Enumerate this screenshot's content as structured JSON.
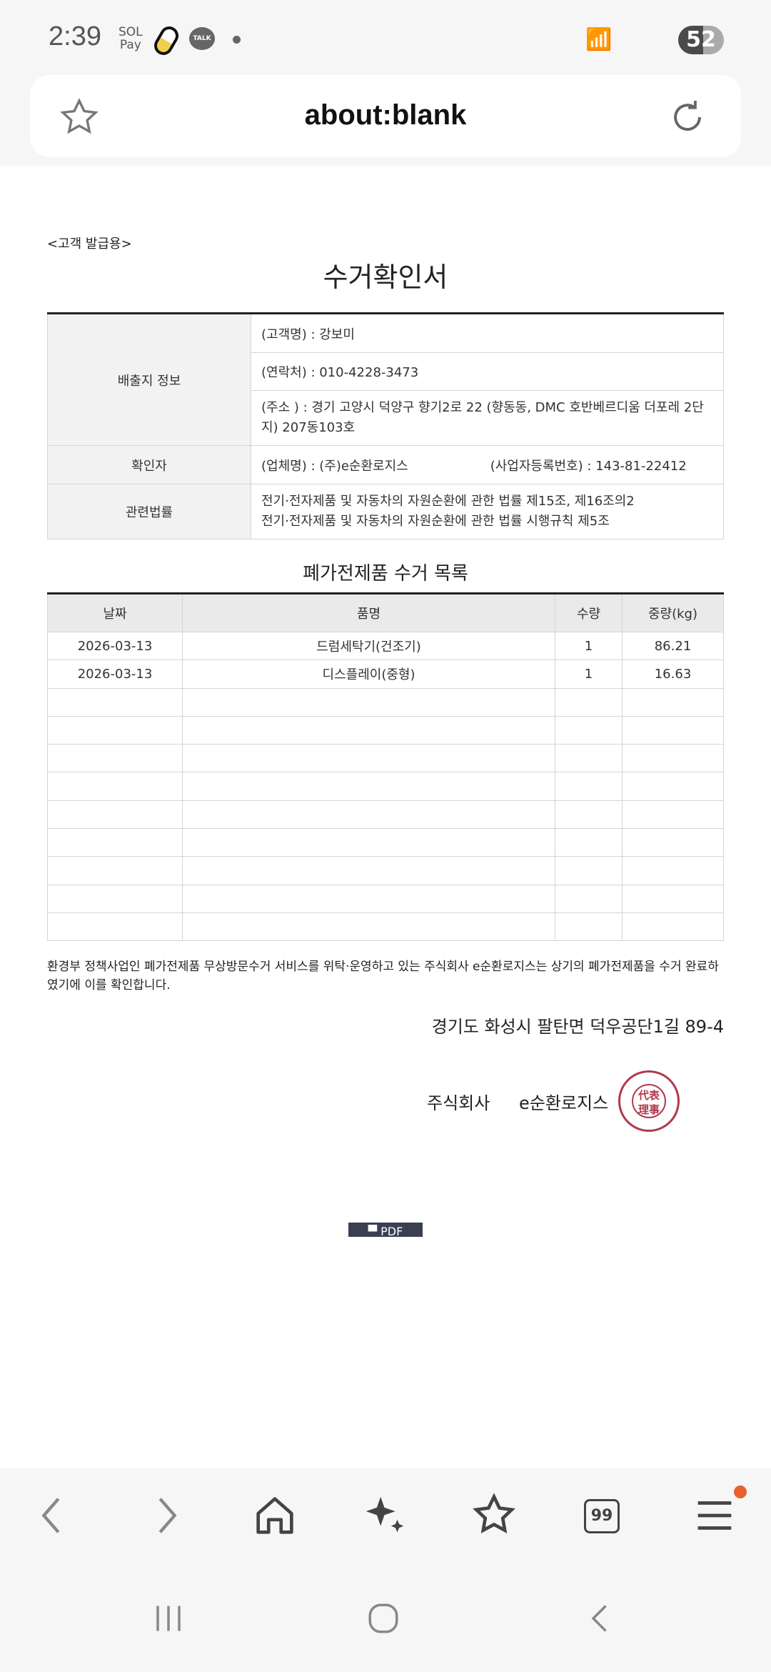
{
  "status_bar": {
    "time": "2:39",
    "battery": "52",
    "app_icons": [
      "sol-pay-icon",
      "pill-icon",
      "kakaotalk-icon"
    ],
    "talk_label": "TALK",
    "sol_label": "SOL",
    "pay_label": "Pay"
  },
  "browser": {
    "url": "about:blank"
  },
  "document": {
    "issue_label": "<고객 발급용>",
    "title": "수거확인서",
    "info_rows": [
      {
        "label": "배출지 정보",
        "values": [
          "(고객명) : 강보미",
          "(연락처) : 010-4228-3473",
          "(주소 ) : 경기 고양시 덕양구 향기2로 22 (향동동, DMC 호반베르디움 더포레 2단지) 207동103호"
        ]
      },
      {
        "label": "확인자",
        "values": [
          "(업체명) : (주)e순환로지스",
          "(사업자등록번호) : 143-81-22412"
        ]
      },
      {
        "label": "관련법률",
        "values": [
          "전기·전자제품 및 자동차의 자원순환에 관한 법률 제15조, 제16조의2",
          "전기·전자제품 및 자동차의 자원순환에 관한 법률 시행규칙 제5조"
        ]
      }
    ],
    "list_title": "폐가전제품 수거 목록",
    "columns": [
      "날짜",
      "품명",
      "수량",
      "중량(kg)"
    ],
    "rows": [
      [
        "2026-03-13",
        "드럼세탁기(건조기)",
        "1",
        "86.21"
      ],
      [
        "2026-03-13",
        "디스플레이(중형)",
        "1",
        "16.63"
      ]
    ],
    "empty_rows": 9,
    "statement": "환경부 정책사업인 폐가전제품 무상방문수거 서비스를 위탁·운영하고 있는 주식회사 e순환로지스는 상기의 폐가전제품을 수거 완료하였기에 이를 확인합니다.",
    "company_address": "경기도 화성시 팔탄면 덕우공단1길 89-4",
    "company_type": "주식회사",
    "company_name": "e순환로지스",
    "stamp_text": "代表理事",
    "pdf_button": "PDF"
  },
  "colors": {
    "stamp": "#b03a4a",
    "pdf_button": "#3a3f52",
    "notification_dot": "#e8602c"
  }
}
